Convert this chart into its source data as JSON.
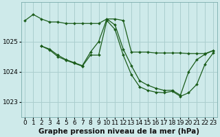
{
  "background_color": "#ceeaea",
  "grid_color": "#aacece",
  "line_color": "#1a5c1a",
  "xlabel": "Graphe pression niveau de la mer (hPa)",
  "xlabel_fontsize": 7.5,
  "tick_fontsize": 6.5,
  "ylabel_ticks": [
    1023,
    1024,
    1025
  ],
  "xlim": [
    -0.5,
    23.5
  ],
  "ylim": [
    1022.5,
    1026.3
  ],
  "line1": {
    "x": [
      0,
      1,
      2,
      3,
      4,
      5,
      6,
      7,
      8,
      9,
      10,
      11,
      12,
      13,
      14,
      15,
      16,
      17,
      18,
      19,
      20,
      21,
      22,
      23
    ],
    "y": [
      1025.7,
      1025.9,
      1025.75,
      1025.65,
      1025.65,
      1025.6,
      1025.6,
      1025.6,
      1025.6,
      1025.6,
      1025.75,
      1025.75,
      1025.7,
      1024.65,
      1024.65,
      1024.65,
      1024.62,
      1024.62,
      1024.62,
      1024.62,
      1024.6,
      1024.6,
      1024.6,
      1024.7
    ]
  },
  "line2": {
    "x": [
      2,
      3,
      4,
      5,
      6,
      7,
      8,
      9,
      10,
      11,
      12,
      13,
      14,
      15,
      16,
      17,
      18,
      19,
      20,
      21,
      22,
      23
    ],
    "y": [
      1024.85,
      1024.75,
      1024.55,
      1024.4,
      1024.3,
      1024.2,
      1024.65,
      1025.0,
      1025.75,
      1025.55,
      1024.75,
      1024.2,
      1023.7,
      1023.55,
      1023.45,
      1023.38,
      1023.38,
      1023.22,
      1024.0,
      1024.4,
      1024.58,
      1024.7
    ]
  },
  "line3": {
    "x": [
      2,
      3,
      4,
      5,
      6,
      7,
      8,
      9,
      10,
      11,
      12,
      13,
      14,
      15,
      16,
      17,
      18,
      19,
      20,
      21,
      22,
      23
    ],
    "y": [
      1024.85,
      1024.72,
      1024.5,
      1024.38,
      1024.28,
      1024.18,
      1024.55,
      1024.55,
      1025.7,
      1025.4,
      1024.55,
      1023.9,
      1023.5,
      1023.38,
      1023.32,
      1023.3,
      1023.35,
      1023.18,
      1023.3,
      1023.58,
      1024.25,
      1024.62
    ]
  }
}
